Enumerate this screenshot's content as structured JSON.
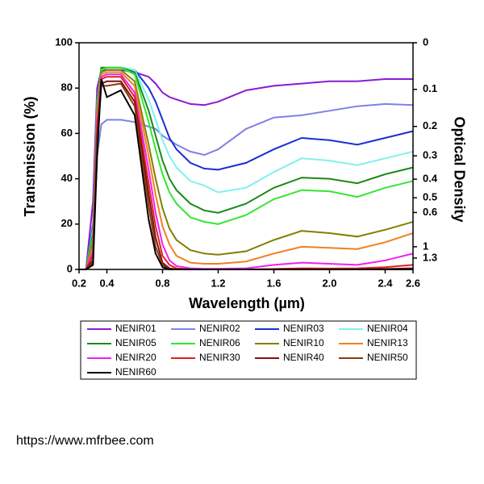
{
  "chart_data": {
    "type": "line",
    "x_label": "Wavelength (µm)",
    "y_label": "Transmission (%)",
    "y2_label": "Optical Density",
    "x": [
      0.2,
      0.25,
      0.3,
      0.33,
      0.36,
      0.4,
      0.5,
      0.6,
      0.7,
      0.75,
      0.8,
      0.85,
      0.9,
      1.0,
      1.1,
      1.2,
      1.4,
      1.6,
      1.8,
      2.0,
      2.2,
      2.4,
      2.6
    ],
    "xlim": [
      0.2,
      2.6
    ],
    "xticks": [
      0.2,
      0.4,
      0.8,
      1.2,
      1.6,
      {
        "value": 2,
        "label": "2.0"
      },
      2.4,
      2.6
    ],
    "ylim": [
      0,
      100
    ],
    "yticks": [
      0,
      20,
      40,
      60,
      80,
      100
    ],
    "y2scale": "optical-density",
    "y2ticks": [
      0,
      0.1,
      0.2,
      0.3,
      0.4,
      0.5,
      0.6,
      1,
      1.3
    ],
    "series": [
      {
        "name": "NENIR01",
        "color": "#8a1ad6",
        "values": [
          0,
          0,
          30,
          80,
          88,
          88,
          88,
          87,
          85,
          82,
          78,
          76,
          75,
          73,
          72.5,
          74,
          79,
          81,
          82,
          83,
          83,
          84,
          84
        ]
      },
      {
        "name": "NENIR02",
        "color": "#8080e8",
        "values": [
          0,
          0,
          10,
          50,
          64,
          66,
          66,
          65,
          63,
          62,
          59,
          57,
          55,
          52,
          50.5,
          53,
          62,
          67,
          68,
          70,
          72,
          73,
          72.5
        ]
      },
      {
        "name": "NENIR03",
        "color": "#1a2fd0",
        "values": [
          0,
          0,
          20,
          75,
          89,
          89,
          89,
          88,
          80,
          74,
          66,
          58,
          53,
          47,
          44.5,
          44,
          47,
          53,
          58,
          57,
          55,
          58,
          61
        ]
      },
      {
        "name": "NENIR04",
        "color": "#80f0f0",
        "values": [
          0,
          0,
          18,
          74,
          89,
          89,
          89,
          88,
          75,
          66,
          57,
          50,
          45,
          39,
          37,
          34,
          36,
          43,
          49,
          48,
          46,
          49,
          52
        ]
      },
      {
        "name": "NENIR05",
        "color": "#1a8a1a",
        "values": [
          0,
          0,
          16,
          73,
          89,
          89,
          89,
          87,
          70,
          59,
          48,
          40,
          35,
          29,
          26,
          25,
          29,
          36,
          40.5,
          40,
          38,
          42,
          45
        ]
      },
      {
        "name": "NENIR06",
        "color": "#33e633",
        "values": [
          0,
          0,
          14,
          72,
          88,
          89,
          89,
          86,
          65,
          53,
          42,
          34,
          29,
          23,
          21,
          20,
          24,
          31,
          35,
          34.5,
          32,
          36,
          39
        ]
      },
      {
        "name": "NENIR10",
        "color": "#808000",
        "values": [
          0,
          0,
          12,
          70,
          87,
          88,
          88,
          83,
          55,
          40,
          27,
          18,
          13,
          8.5,
          7,
          6.5,
          8,
          13,
          17,
          16,
          14.5,
          17.5,
          21
        ]
      },
      {
        "name": "NENIR13",
        "color": "#f08020",
        "values": [
          0,
          0,
          10,
          68,
          86,
          87,
          87,
          81,
          50,
          33,
          19,
          11,
          6,
          3,
          2.5,
          2.5,
          3.5,
          7,
          10,
          9.5,
          9,
          12,
          16
        ]
      },
      {
        "name": "NENIR20",
        "color": "#f020f0",
        "values": [
          0,
          0,
          8,
          65,
          85,
          86,
          86,
          78,
          44,
          25,
          11,
          4,
          1.5,
          0.5,
          0.3,
          0.3,
          0.5,
          2,
          3,
          2.5,
          2,
          4,
          7
        ]
      },
      {
        "name": "NENIR30",
        "color": "#e02020",
        "values": [
          0,
          0,
          6,
          62,
          84,
          85,
          85,
          76,
          38,
          19,
          6,
          2,
          0.5,
          0,
          0,
          0,
          0,
          0.2,
          0.5,
          0.4,
          0.5,
          1,
          2
        ]
      },
      {
        "name": "NENIR40",
        "color": "#801010",
        "values": [
          0,
          0,
          4,
          58,
          82,
          83,
          83,
          74,
          33,
          14,
          3,
          0.5,
          0,
          0,
          0,
          0,
          0,
          0,
          0,
          0,
          0,
          0.2,
          0.5
        ]
      },
      {
        "name": "NENIR50",
        "color": "#8a3a10",
        "values": [
          0,
          0,
          3,
          55,
          81,
          81,
          82,
          72,
          28,
          10,
          2,
          0,
          0,
          0,
          0,
          0,
          0,
          0,
          0,
          0,
          0,
          0,
          0
        ]
      },
      {
        "name": "NENIR60",
        "color": "#000000",
        "values": [
          0,
          0,
          2,
          50,
          84,
          76,
          79,
          68,
          22,
          7,
          1,
          0,
          0,
          0,
          0,
          0,
          0,
          0,
          0,
          0,
          0,
          0,
          0
        ]
      }
    ]
  },
  "footer": "https://www.mfrbee.com"
}
